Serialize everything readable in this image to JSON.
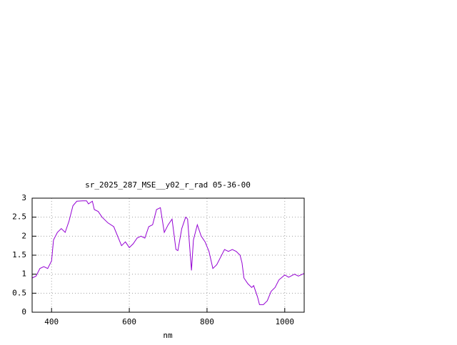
{
  "chart_data": {
    "type": "line",
    "title": "sr_2025_287_MSE__y02_r_rad 05-36-00",
    "xlabel": "nm",
    "x": [
      350,
      360,
      370,
      380,
      390,
      400,
      405,
      415,
      425,
      435,
      445,
      455,
      465,
      480,
      490,
      495,
      505,
      510,
      520,
      530,
      545,
      560,
      570,
      580,
      590,
      600,
      610,
      620,
      630,
      640,
      650,
      660,
      670,
      680,
      690,
      700,
      710,
      720,
      725,
      735,
      745,
      750,
      760,
      765,
      775,
      785,
      795,
      805,
      815,
      825,
      835,
      845,
      855,
      865,
      875,
      885,
      890,
      895,
      905,
      915,
      920,
      930,
      935,
      945,
      955,
      965,
      975,
      985,
      1000,
      1010,
      1025,
      1035,
      1050
    ],
    "series": [
      {
        "name": "sr_2025_287_MSE__y02_r_rad",
        "color": "#9400d3",
        "values": [
          0.9,
          0.95,
          1.15,
          1.2,
          1.15,
          1.35,
          1.9,
          2.1,
          2.2,
          2.1,
          2.4,
          2.8,
          2.92,
          2.93,
          2.93,
          2.85,
          2.92,
          2.7,
          2.65,
          2.5,
          2.35,
          2.25,
          2.0,
          1.75,
          1.85,
          1.7,
          1.8,
          1.95,
          2.0,
          1.95,
          2.25,
          2.3,
          2.7,
          2.75,
          2.1,
          2.3,
          2.45,
          1.65,
          1.62,
          2.2,
          2.5,
          2.45,
          1.1,
          1.9,
          2.3,
          2.0,
          1.85,
          1.6,
          1.15,
          1.25,
          1.45,
          1.65,
          1.6,
          1.65,
          1.6,
          1.5,
          1.3,
          0.9,
          0.75,
          0.65,
          0.7,
          0.4,
          0.2,
          0.2,
          0.3,
          0.55,
          0.65,
          0.85,
          0.98,
          0.92,
          1.0,
          0.95,
          1.02
        ]
      }
    ],
    "xlim": [
      350,
      1050
    ],
    "xticks": [
      400,
      600,
      800,
      1000
    ],
    "ylim": [
      0,
      3
    ],
    "yticks": [
      0,
      0.5,
      1,
      1.5,
      2,
      2.5,
      3
    ],
    "grid": true
  }
}
